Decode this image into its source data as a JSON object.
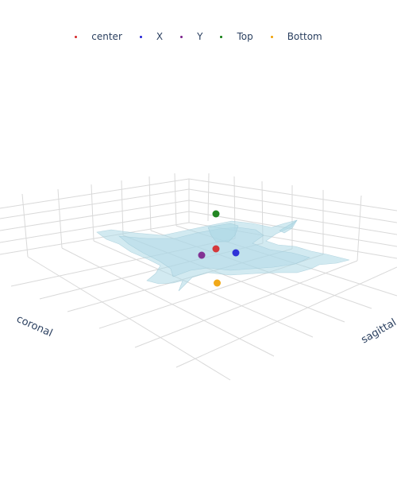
{
  "chart_data": {
    "type": "scatter3d-with-mesh",
    "axes": {
      "x_title": "coronal",
      "y_title": "sagittal",
      "z_title": "",
      "grid": true,
      "tick_labels": false
    },
    "legend": {
      "placement": "top-center",
      "orientation": "horizontal"
    },
    "mesh": {
      "name": "surface",
      "color": "#add8e6",
      "opacity": 0.5
    },
    "series": [
      {
        "name": "center",
        "color": "#d62728",
        "points": [
          {
            "x": 0,
            "y": 0,
            "z": 0
          }
        ]
      },
      {
        "name": "X",
        "color": "#1f1fd6",
        "points": [
          {
            "x": 1,
            "y": 0,
            "z": 0
          }
        ]
      },
      {
        "name": "Y",
        "color": "#7b1f8a",
        "points": [
          {
            "x": 0,
            "y": 1,
            "z": 0
          }
        ]
      },
      {
        "name": "Top",
        "color": "#0a7a0a",
        "points": [
          {
            "x": 0,
            "y": 0,
            "z": 1
          }
        ]
      },
      {
        "name": "Bottom",
        "color": "#f0a000",
        "points": [
          {
            "x": 0,
            "y": 0,
            "z": -1
          }
        ]
      }
    ]
  }
}
